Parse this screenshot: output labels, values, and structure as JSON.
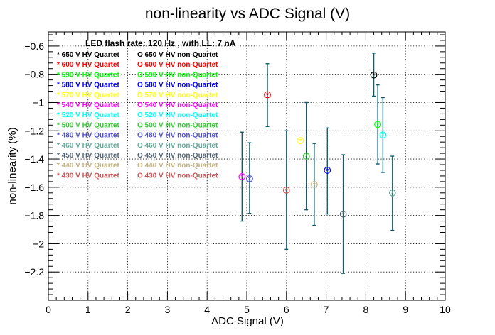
{
  "chart_data": {
    "type": "scatter",
    "title": "non-linearity vs ADC Signal (V)",
    "xlabel": "ADC Signal (V)",
    "ylabel": "non-linearity (%)",
    "xlim": [
      0,
      10
    ],
    "ylim": [
      -2.4,
      -0.5
    ],
    "x_ticks": [
      0,
      1,
      2,
      3,
      4,
      5,
      6,
      7,
      8,
      9,
      10
    ],
    "x_tick_labels": [
      "0",
      "1",
      "2",
      "3",
      "4",
      "5",
      "6",
      "7",
      "8",
      "9",
      "10"
    ],
    "y_ticks": [
      -0.6,
      -0.8,
      -1.0,
      -1.2,
      -1.4,
      -1.6,
      -1.8,
      -2.0,
      -2.2
    ],
    "y_tick_labels": [
      "−0.6",
      "−0.8",
      "−1",
      "−1.2",
      "−1.4",
      "−1.6",
      "−1.8",
      "−2",
      "−2.2"
    ],
    "grid": true,
    "legend_placement": "top-left",
    "legend_header": "LED flash rate: 120 Hz , with LL: 7 nA",
    "legend_entries": [
      {
        "quartet": "* 650 V HV Quartet",
        "non_quartet": "O 650 V HV non-Quartet",
        "color": "#000000"
      },
      {
        "quartet": "* 600 V HV Quartet",
        "non_quartet": "O 600 V HV non-Quartet",
        "color": "#ff0000"
      },
      {
        "quartet": "* 590 V HV Quartet",
        "non_quartet": "O 590 V HV non-Quartet",
        "color": "#00ff00"
      },
      {
        "quartet": "* 580 V HV Quartet",
        "non_quartet": "O 580 V HV non-Quartet",
        "color": "#0000ff"
      },
      {
        "quartet": "* 570 V HV Quartet",
        "non_quartet": "O 570 V HV non-Quartet",
        "color": "#ffff00"
      },
      {
        "quartet": "* 540 V HV Quartet",
        "non_quartet": "O 540 V HV non-Quartet",
        "color": "#ff00ff"
      },
      {
        "quartet": "* 520 V HV Quartet",
        "non_quartet": "O 520 V HV non-Quartet",
        "color": "#00ffff"
      },
      {
        "quartet": "* 500 V HV Quartet",
        "non_quartet": "O 500 V HV non-Quartet",
        "color": "#33cc33"
      },
      {
        "quartet": "* 480 V HV Quartet",
        "non_quartet": "O 480 V HV non-Quartet",
        "color": "#5050d0"
      },
      {
        "quartet": "* 460 V HV Quartet",
        "non_quartet": "O 460 V HV non-Quartet",
        "color": "#66aa99"
      },
      {
        "quartet": "* 450 V HV Quartet",
        "non_quartet": "O 450 V HV non-Quartet",
        "color": "#556677"
      },
      {
        "quartet": "* 440 V HV Quartet",
        "non_quartet": "O 440 V HV non-Quartet",
        "color": "#c2b280"
      },
      {
        "quartet": "* 430 V HV Quartet",
        "non_quartet": "O 430 V HV non-Quartet",
        "color": "#cc5555"
      }
    ],
    "error_bar_color": "#0e5f6b",
    "series": [
      {
        "hv": "650 V",
        "x": 8.2,
        "y": -0.805,
        "err_low": 0.15,
        "err_high": 0.155,
        "color": "#000000"
      },
      {
        "hv": "600 V",
        "x": 5.52,
        "y": -0.945,
        "err_low": 0.225,
        "err_high": 0.22,
        "color": "#ff0000"
      },
      {
        "hv": "590 V",
        "x": 8.3,
        "y": -1.155,
        "err_low": 0.28,
        "err_high": 0.28,
        "color": "#00ff00"
      },
      {
        "hv": "580 V",
        "x": 7.03,
        "y": -1.48,
        "err_low": 0.31,
        "err_high": 0.3,
        "color": "#0000ff"
      },
      {
        "hv": "570 V",
        "x": 6.35,
        "y": -1.27,
        "err_low": 0.0,
        "err_high": 0.0,
        "color": "#ffff00"
      },
      {
        "hv": "540 V",
        "x": 4.88,
        "y": -1.525,
        "err_low": 0.315,
        "err_high": 0.315,
        "color": "#ff00ff"
      },
      {
        "hv": "520 V",
        "x": 8.43,
        "y": -1.23,
        "err_low": 0.265,
        "err_high": 0.265,
        "color": "#00ffff"
      },
      {
        "hv": "500 V",
        "x": 6.5,
        "y": -1.38,
        "err_low": 0.38,
        "err_high": 0.38,
        "color": "#33cc33"
      },
      {
        "hv": "480 V",
        "x": 5.07,
        "y": -1.54,
        "err_low": 0.245,
        "err_high": 0.255,
        "color": "#5050d0"
      },
      {
        "hv": "460 V",
        "x": 8.67,
        "y": -1.64,
        "err_low": 0.265,
        "err_high": 0.26,
        "color": "#66aa99"
      },
      {
        "hv": "450 V",
        "x": 7.43,
        "y": -1.79,
        "err_low": 0.42,
        "err_high": 0.42,
        "color": "#556677"
      },
      {
        "hv": "440 V",
        "x": 6.7,
        "y": -1.58,
        "err_low": 0.29,
        "err_high": 0.29,
        "color": "#c2b280"
      },
      {
        "hv": "430 V",
        "x": 6.0,
        "y": -1.62,
        "err_low": 0.42,
        "err_high": 0.42,
        "color": "#cc5555"
      }
    ]
  }
}
